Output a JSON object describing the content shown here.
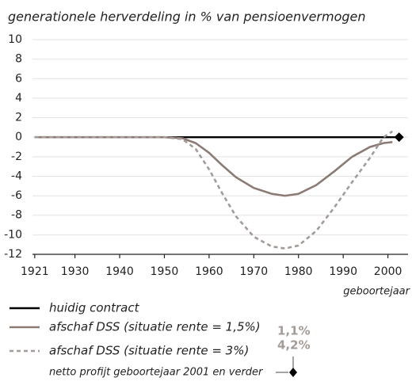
{
  "chart_data": {
    "type": "line",
    "title": "generationele herverdeling in % van pensioenvermogen",
    "x_label": "geboortejaar",
    "x": [
      1921,
      1950,
      1954,
      1957,
      1960,
      1963,
      1966,
      1970,
      1974,
      1977,
      1980,
      1984,
      1988,
      1992,
      1996,
      1999,
      2001,
      2002.5
    ],
    "series": [
      {
        "name": "huidig contract",
        "color": "#000000",
        "dash": false,
        "end_marker": "diamond",
        "values": [
          0,
          0,
          0,
          0,
          0,
          0,
          0,
          0,
          0,
          0,
          0,
          0,
          0,
          0,
          0,
          0,
          0,
          0
        ]
      },
      {
        "name": "afschaf DSS (situatie rente = 1,5%)",
        "color": "#8c7b75",
        "dash": false,
        "net_profit": 1.1,
        "net_profit_label": "1,1%",
        "values": [
          0,
          0,
          -0.1,
          -0.6,
          -1.6,
          -2.9,
          -4.1,
          -5.2,
          -5.8,
          -6,
          -5.8,
          -4.9,
          -3.5,
          -2,
          -1,
          -0.6,
          -0.5,
          null
        ]
      },
      {
        "name": "afschaf DSS (situatie rente = 3%)",
        "color": "#a39b98",
        "dash": true,
        "net_profit": 4.2,
        "net_profit_label": "4,2%",
        "values": [
          0,
          0,
          -0.2,
          -1.2,
          -3.3,
          -5.8,
          -8.1,
          -10.2,
          -11.2,
          -11.4,
          -11.1,
          -9.6,
          -7.2,
          -4.6,
          -2.1,
          0,
          0.6,
          null
        ]
      }
    ],
    "net_profit_note": "netto profijt geboortejaar 2001 en verder",
    "xlim": [
      1920.5,
      2004.5
    ],
    "xticks": [
      1921,
      1930,
      1940,
      1950,
      1960,
      1970,
      1980,
      1990,
      2000
    ],
    "ylim": [
      -12,
      10
    ],
    "yticks": [
      10,
      8,
      6,
      4,
      2,
      0,
      -2,
      -4,
      -6,
      -8,
      -10,
      -12
    ],
    "grid": true
  }
}
